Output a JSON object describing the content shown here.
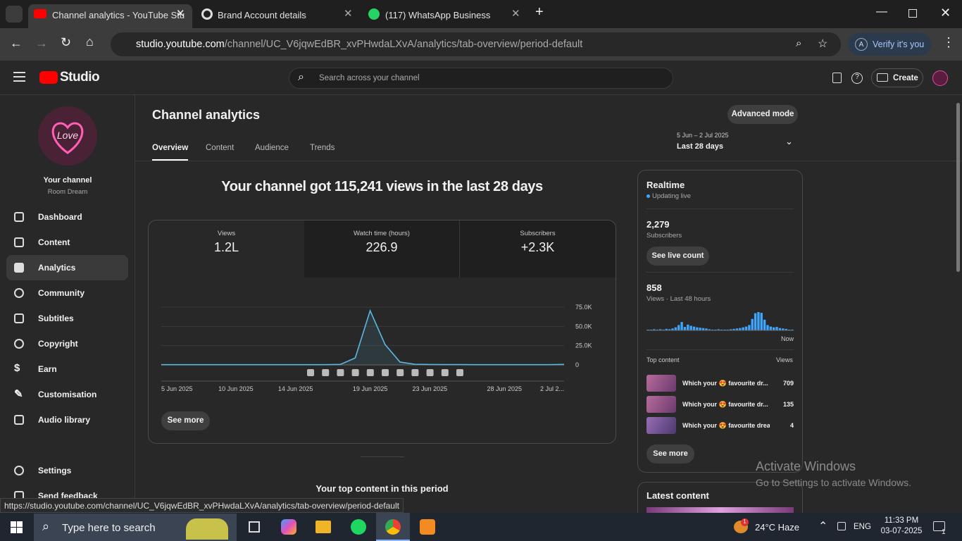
{
  "browser": {
    "tabs": [
      "Channel analytics - YouTube Stu",
      "Brand Account details",
      "(117) WhatsApp Business"
    ],
    "url_host": "studio.youtube.com",
    "url_path": "/channel/UC_V6jqwEdBR_xvPHwdaLXvA/analytics/tab-overview/period-default",
    "verify": "Verify it's you",
    "status_url": "https://studio.youtube.com/channel/UC_V6jqwEdBR_xvPHwdaLXvA/analytics/tab-overview/period-default"
  },
  "header": {
    "logo": "Studio",
    "search": "Search across your channel",
    "create": "Create"
  },
  "sidebar": {
    "channel": "Your channel",
    "channel_name": "Room Dream",
    "nav": [
      "Dashboard",
      "Content",
      "Analytics",
      "Community",
      "Subtitles",
      "Copyright",
      "Earn",
      "Customisation",
      "Audio library"
    ],
    "settings": "Settings",
    "feedback": "Send feedback"
  },
  "analytics": {
    "title": "Channel analytics",
    "advanced": "Advanced mode",
    "tabs": [
      "Overview",
      "Content",
      "Audience",
      "Trends"
    ],
    "date_range": "5 Jun – 2 Jul 2025",
    "period": "Last 28 days",
    "headline": "Your channel got 115,241 views in the last 28 days",
    "metrics": [
      {
        "label": "Views",
        "value": "1.2L"
      },
      {
        "label": "Watch time (hours)",
        "value": "226.9"
      },
      {
        "label": "Subscribers",
        "value": "+2.3K"
      }
    ],
    "see_more": "See more",
    "top_content_heading": "Your top content in this period"
  },
  "chart_data": [
    {
      "type": "line",
      "color": "#5bb8e0",
      "categories": [
        "5 Jun 2025",
        null,
        null,
        null,
        null,
        "10 Jun 2025",
        null,
        null,
        null,
        "14 Jun 2025",
        null,
        null,
        null,
        null,
        "19 Jun 2025",
        null,
        null,
        null,
        "23 Jun 2025",
        null,
        null,
        null,
        null,
        "28 Jun 2025",
        null,
        null,
        null,
        "2 Jul 2..."
      ],
      "values": [
        300,
        300,
        300,
        300,
        300,
        300,
        300,
        300,
        300,
        300,
        300,
        300,
        600,
        9000,
        70400,
        26500,
        3700,
        800,
        500,
        400,
        400,
        300,
        300,
        300,
        300,
        300,
        300,
        600
      ],
      "ylim": [
        0,
        75000
      ],
      "yticks": [
        0,
        {
          "value": 25000,
          "label": "25.0K"
        },
        {
          "value": 50000,
          "label": "50.0K"
        },
        {
          "value": 75000,
          "label": "75.0K"
        }
      ],
      "grid": true
    },
    {
      "type": "bar",
      "color": "#3ea6ff",
      "values": [
        2,
        2,
        3,
        2,
        3,
        2,
        4,
        3,
        5,
        8,
        14,
        22,
        9,
        15,
        12,
        10,
        8,
        7,
        6,
        5,
        3,
        2,
        2,
        3,
        2,
        2,
        2,
        3,
        4,
        5,
        6,
        8,
        10,
        14,
        30,
        45,
        48,
        46,
        28,
        14,
        10,
        8,
        9,
        6,
        5,
        4,
        2,
        2
      ],
      "annotations": [
        "Now"
      ]
    }
  ],
  "realtime": {
    "title": "Realtime",
    "status": "Updating live",
    "subscribers": "2,279",
    "subscribers_label": "Subscribers",
    "live_count": "See live count",
    "views": "858",
    "views_label": "Views · Last 48 hours",
    "top_content": "Top content",
    "views_header": "Views",
    "items": [
      {
        "title": "Which your 😍 favourite dr...",
        "views": 709
      },
      {
        "title": "Which your 😍 favourite dr...",
        "views": 135
      },
      {
        "title": "Which your 😍 favourite drea...",
        "views": 4
      }
    ],
    "see_more": "See more"
  },
  "latest": "Latest content",
  "overlay": {
    "activate_title": "Activate Windows",
    "activate_text": "Go to Settings to activate Windows."
  },
  "taskbar": {
    "search": "Type here to search",
    "weather": "24°C Haze",
    "weather_badge": "1",
    "language": "ENG",
    "time": "11:33 PM",
    "date": "03-07-2025",
    "notifications": "1"
  }
}
